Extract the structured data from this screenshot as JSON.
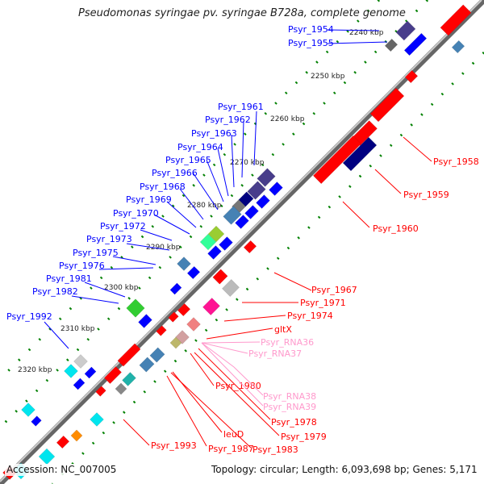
{
  "title": "Pseudomonas syringae pv. syringae B728a, complete genome",
  "footer": {
    "accession": "Accession: NC_007005",
    "summary": "Topology: circular; Length: 6,093,698 bp; Genes: 5,171"
  },
  "colors": {
    "forward": "#0000ff",
    "reverse": "#ff0000",
    "rna": "#ff99cc",
    "backbone": "#888888",
    "ticks": "#008000"
  },
  "ticks": [
    "2240 kbp",
    "2250 kbp",
    "2260 kbp",
    "2270 kbp",
    "2280 kbp",
    "2290 kbp",
    "2300 kbp",
    "2310 kbp",
    "2320 kbp"
  ],
  "forward_labels": [
    "Psyr_1954",
    "Psyr_1955",
    "Psyr_1961",
    "Psyr_1962",
    "Psyr_1963",
    "Psyr_1964",
    "Psyr_1965",
    "Psyr_1966",
    "Psyr_1968",
    "Psyr_1969",
    "Psyr_1970",
    "Psyr_1972",
    "Psyr_1973",
    "Psyr_1975",
    "Psyr_1976",
    "Psyr_1981",
    "Psyr_1982",
    "Psyr_1992"
  ],
  "reverse_labels": [
    "Psyr_1958",
    "Psyr_1959",
    "Psyr_1960",
    "Psyr_1967",
    "Psyr_1971",
    "Psyr_1974",
    "gltX",
    "Psyr_1980",
    "Psyr_1978",
    "Psyr_1979",
    "leuD",
    "Psyr_1987",
    "Psyr_1983",
    "Psyr_1993"
  ],
  "rna_labels": [
    "Psyr_RNA36",
    "Psyr_RNA37",
    "Psyr_RNA38",
    "Psyr_RNA39"
  ]
}
